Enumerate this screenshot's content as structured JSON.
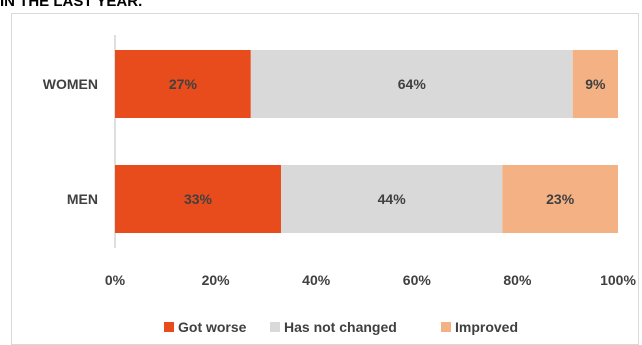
{
  "header": {
    "title": "IN THE LAST YEAR."
  },
  "chart_data": {
    "type": "bar",
    "orientation": "horizontal",
    "stacked": true,
    "percent_stacked": true,
    "categories": [
      "WOMEN",
      "MEN"
    ],
    "series": [
      {
        "name": "Got worse",
        "values": [
          27,
          33
        ],
        "labels": [
          "27%",
          "33%"
        ],
        "color": "#e84c1c"
      },
      {
        "name": "Has not changed",
        "values": [
          64,
          44
        ],
        "labels": [
          "64%",
          "44%"
        ],
        "color": "#d9d9d9"
      },
      {
        "name": "Improved",
        "values": [
          9,
          23
        ],
        "labels": [
          "9%",
          "23%"
        ],
        "color": "#f4b183"
      }
    ],
    "xlim": [
      0,
      100
    ],
    "xticks": [
      0,
      20,
      40,
      60,
      80,
      100
    ],
    "xtick_labels": [
      "0%",
      "20%",
      "40%",
      "60%",
      "80%",
      "100%"
    ],
    "grid": false,
    "legend": "bottom"
  }
}
